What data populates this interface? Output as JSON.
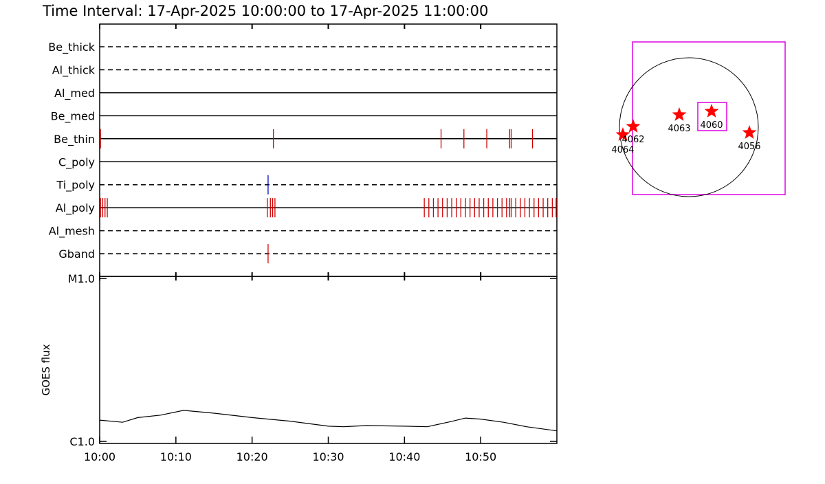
{
  "chart_data": [
    {
      "type": "event",
      "title": "Time Interval: 17-Apr-2025 10:00:00 to 17-Apr-2025 11:00:00",
      "categories": [
        "Be_thick",
        "Al_thick",
        "Al_med",
        "Be_med",
        "Be_thin",
        "C_poly",
        "Ti_poly",
        "Al_poly",
        "Al_mesh",
        "Gband"
      ],
      "styles": [
        "dashed",
        "dashed",
        "solid",
        "solid",
        "solid",
        "solid",
        "dashed",
        "solid",
        "dashed",
        "dashed"
      ],
      "colors": [
        "#d00000",
        "#d00000",
        "#d00000",
        "#d00000",
        "#d00000",
        "#d00000",
        "#0000c0",
        "#d00000",
        "#d00000",
        "#d00000"
      ],
      "events": [
        [],
        [],
        [],
        [],
        [
          0.1,
          22.8,
          44.8,
          47.8,
          50.8,
          53.8,
          54.0,
          56.8
        ],
        [],
        [
          22.1
        ],
        [
          0.1,
          0.4,
          0.7,
          1.0,
          22.0,
          22.4,
          22.7,
          23.0,
          42.6,
          43.2,
          43.8,
          44.4,
          45.0,
          45.6,
          46.2,
          46.8,
          47.4,
          48.0,
          48.6,
          49.2,
          49.8,
          50.4,
          51.0,
          51.6,
          52.2,
          52.8,
          53.4,
          53.8,
          54.0,
          54.6,
          55.2,
          55.8,
          56.4,
          57.0,
          57.6,
          58.2,
          58.8,
          59.4,
          59.9
        ],
        [],
        [
          22.1
        ]
      ]
    },
    {
      "type": "line",
      "ylabel": "GOES flux",
      "log": true,
      "x": [
        0,
        3,
        5,
        8,
        11,
        15,
        20,
        25,
        30,
        32,
        35,
        40,
        43,
        46,
        48,
        50,
        53,
        56,
        60
      ],
      "values": [
        1.35e-06,
        1.31e-06,
        1.4e-06,
        1.45e-06,
        1.55e-06,
        1.49e-06,
        1.4e-06,
        1.33e-06,
        1.24e-06,
        1.23e-06,
        1.25e-06,
        1.24e-06,
        1.23e-06,
        1.32e-06,
        1.39e-06,
        1.37e-06,
        1.31e-06,
        1.23e-06,
        1.16e-06
      ],
      "color": "#000000",
      "xlim": [
        0,
        60
      ],
      "xticks": [
        {
          "value": 0,
          "label": "10:00"
        },
        {
          "value": 10,
          "label": "10:10"
        },
        {
          "value": 20,
          "label": "10:20"
        },
        {
          "value": 30,
          "label": "10:30"
        },
        {
          "value": 40,
          "label": "10:40"
        },
        {
          "value": 50,
          "label": "10:50"
        }
      ],
      "ylim": [
        1e-06,
        1e-05
      ],
      "yticks": [
        {
          "value": 1e-06,
          "label": "C1.0"
        },
        {
          "value": 1e-05,
          "label": "M1.0"
        }
      ]
    },
    {
      "type": "map",
      "labels": [
        "4064",
        "4062",
        "4063",
        "4060",
        "4056"
      ],
      "color": "#ff0000",
      "box_color": "#e000e0"
    }
  ]
}
